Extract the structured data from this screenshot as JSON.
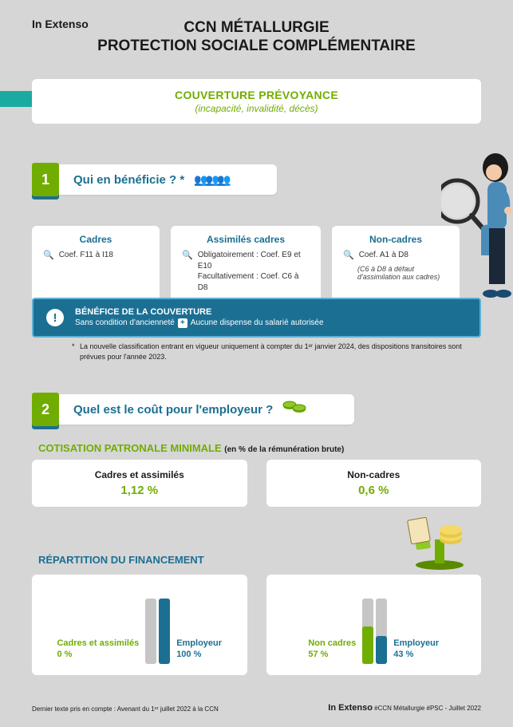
{
  "brand": "In Extenso",
  "title_line1": "CCN MÉTALLURGIE",
  "title_line2": "PROTECTION SOCIALE COMPLÉMENTAIRE",
  "subtitle": "COUVERTURE PRÉVOYANCE",
  "subtitle_desc": "(incapacité, invalidité, décès)",
  "colors": {
    "green": "#71ad00",
    "blue": "#1b6f93",
    "teal": "#1baaa0",
    "grey_bg": "#d6d6d6",
    "bar_bg": "#c6c6c6"
  },
  "section1": {
    "num": "1",
    "title": "Qui en bénéficie ? *",
    "cards": [
      {
        "title": "Cadres",
        "line1": "Coef. F11 à I18",
        "line2": "",
        "sub": ""
      },
      {
        "title": "Assimilés cadres",
        "line1": "Obligatoirement : Coef. E9 et E10",
        "line2": "Facultativement : Coef. C6 à D8",
        "sub": ""
      },
      {
        "title": "Non-cadres",
        "line1": "Coef. A1 à D8",
        "line2": "",
        "sub": "(C6 à D8 à défaut d'assimilation aux cadres)"
      }
    ],
    "benefit_title": "BÉNÉFICE DE LA COUVERTURE",
    "benefit_desc_a": "Sans condition d'ancienneté",
    "benefit_desc_b": "Aucune dispense du salarié autorisée",
    "footnote": "La nouvelle classification entrant en vigueur uniquement à compter du 1ᵉʳ janvier 2024, des dispositions transitoires sont prévues pour l'année 2023."
  },
  "section2": {
    "num": "2",
    "title": "Quel est le coût pour l'employeur ?",
    "cotisation_title": "COTISATION PATRONALE MINIMALE",
    "cotisation_note": "(en % de la rémunération brute)",
    "cot_cards": [
      {
        "label": "Cadres et assimilés",
        "value": "1,12 %"
      },
      {
        "label": "Non-cadres",
        "value": "0,6 %"
      }
    ],
    "repartition_title": "RÉPARTITION DU FINANCEMENT",
    "charts": [
      {
        "left_label": "Cadres et assimilés",
        "left_value": "0 %",
        "left_pct": 0,
        "left_color": "#71ad00",
        "right_label": "Employeur",
        "right_value": "100 %",
        "right_pct": 100,
        "right_color": "#1b6f93"
      },
      {
        "left_label": "Non cadres",
        "left_value": "57 %",
        "left_pct": 57,
        "left_color": "#71ad00",
        "right_label": "Employeur",
        "right_value": "43 %",
        "right_pct": 43,
        "right_color": "#1b6f93"
      }
    ]
  },
  "footer_left": "Dernier texte pris en compte : Avenant du 1ᵉʳ juillet 2022 à la CCN",
  "footer_brand": "In Extenso",
  "footer_right": "#CCN Métallurgie #PSC - Juillet 2022"
}
